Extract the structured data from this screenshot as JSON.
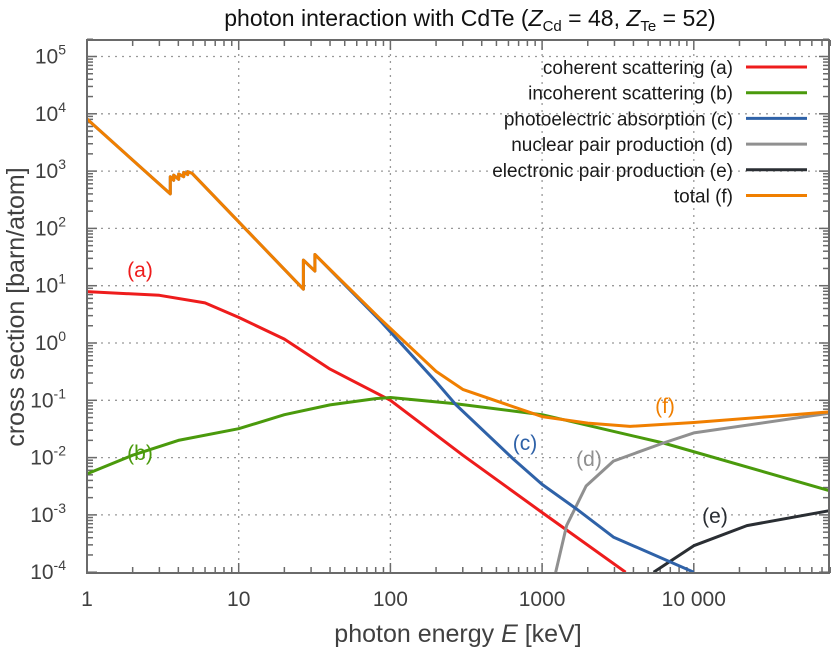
{
  "chart_data": {
    "type": "line",
    "title": "photon interaction with CdTe (Z_Cd = 48, Z_Te = 52)",
    "title_parts": {
      "prefix": "photon interaction with CdTe (",
      "z1": "Z",
      "z1_sub": "Cd",
      "z1_val": " = 48, ",
      "z2": "Z",
      "z2_sub": "Te",
      "z2_val": " = 52)"
    },
    "xlabel": {
      "prefix": "photon energy ",
      "var": "E",
      "unit": "  [keV]"
    },
    "ylabel": "cross section [barn/atom]",
    "xscale": "log",
    "yscale": "log",
    "xlim": [
      1,
      80000
    ],
    "ylim": [
      0.0001,
      200000
    ],
    "grid": true,
    "legend_position": "top-right",
    "x_tick_labels": [
      "1",
      "10",
      "100",
      "1000",
      "10 000"
    ],
    "x_tick_values": [
      1,
      10,
      100,
      1000,
      10000
    ],
    "y_tick_values": [
      0.0001,
      0.001,
      0.01,
      0.1,
      1,
      10,
      100,
      1000,
      10000,
      100000
    ],
    "y_tick_exponents": [
      "-4",
      "-3",
      "-2",
      "-1",
      "0",
      "1",
      "2",
      "3",
      "4",
      "5"
    ],
    "y_tick_base": "10",
    "series": [
      {
        "name": "coherent scattering (a)",
        "label": "(a)",
        "color": "#ee1c1c",
        "x": [
          1,
          3,
          6,
          10,
          20,
          40,
          100,
          300,
          1000,
          3550
        ],
        "y": [
          7.9,
          6.8,
          5,
          2.8,
          1.17,
          0.35,
          0.1,
          0.011,
          0.0011,
          0.0001
        ]
      },
      {
        "name": "incoherent scattering (b)",
        "label": "(b)",
        "color": "#4a9a0c",
        "x": [
          1,
          2,
          4,
          10,
          20,
          40,
          80,
          100,
          270,
          1000,
          6300,
          80000
        ],
        "y": [
          0.0052,
          0.011,
          0.02,
          0.032,
          0.056,
          0.083,
          0.107,
          0.112,
          0.087,
          0.056,
          0.018,
          0.0026
        ]
      },
      {
        "name": "photoelectric absorption (c)",
        "label": "(c)",
        "color": "#2f62a8",
        "x": [
          1,
          3.54,
          3.54,
          3.73,
          3.73,
          4.02,
          4.02,
          4.34,
          4.34,
          4.61,
          4.61,
          4.94,
          26.7,
          26.7,
          31.8,
          31.8,
          85,
          200,
          270,
          650,
          1000,
          1690,
          2950,
          10000
        ],
        "y": [
          8100,
          400,
          800,
          690,
          850,
          720,
          890,
          800,
          950,
          870,
          980,
          910,
          8.7,
          28,
          18,
          35,
          2.5,
          0.21,
          0.084,
          0.0093,
          0.0034,
          0.00126,
          0.00041,
          0.0001
        ]
      },
      {
        "name": "nuclear pair production (d)",
        "label": "(d)",
        "color": "#909090",
        "x": [
          1230,
          1450,
          1950,
          2950,
          6300,
          10000,
          80000
        ],
        "y": [
          0.0001,
          0.00065,
          0.0032,
          0.0087,
          0.018,
          0.027,
          0.06
        ]
      },
      {
        "name": "electronic pair production (e)",
        "label": "(e)",
        "color": "#2a2e33",
        "x": [
          5430,
          10000,
          22400,
          80000
        ],
        "y": [
          0.0001,
          0.00029,
          0.00065,
          0.0012
        ]
      },
      {
        "name": "total (f)",
        "label": "(f)",
        "color": "#f07f00",
        "x": [
          1,
          3.54,
          3.54,
          3.73,
          3.73,
          4.02,
          4.02,
          4.34,
          4.34,
          4.61,
          4.61,
          4.94,
          26.7,
          26.7,
          31.8,
          31.8,
          85,
          200,
          300,
          1000,
          2000,
          3800,
          10000,
          31600,
          80000
        ],
        "y": [
          8100,
          400,
          800,
          690,
          850,
          720,
          890,
          800,
          950,
          870,
          980,
          910,
          8.7,
          28,
          18,
          35,
          2.7,
          0.32,
          0.155,
          0.052,
          0.04,
          0.035,
          0.041,
          0.052,
          0.063
        ]
      }
    ]
  }
}
